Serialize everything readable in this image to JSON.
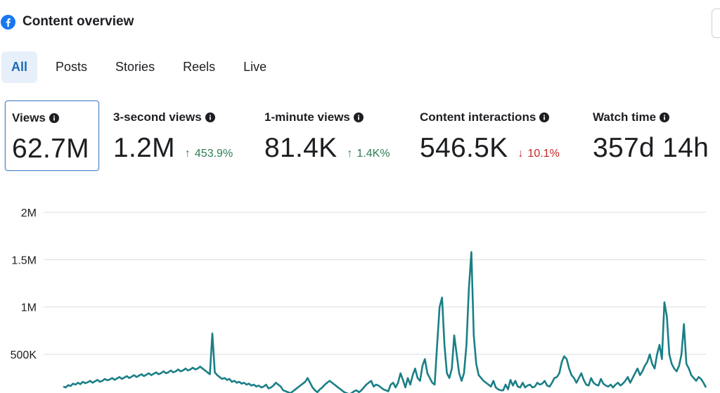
{
  "header": {
    "title": "Content overview",
    "logo_icon": "facebook-logo-icon",
    "brand_color": "#1877f2"
  },
  "tabs": [
    {
      "label": "All",
      "active": true
    },
    {
      "label": "Posts",
      "active": false
    },
    {
      "label": "Stories",
      "active": false
    },
    {
      "label": "Reels",
      "active": false
    },
    {
      "label": "Live",
      "active": false
    }
  ],
  "metrics": [
    {
      "label": "Views",
      "value": "62.7M",
      "delta": "",
      "delta_direction": "",
      "selected": true
    },
    {
      "label": "3-second views",
      "value": "1.2M",
      "delta": "453.9%",
      "delta_direction": "up",
      "selected": false
    },
    {
      "label": "1-minute views",
      "value": "81.4K",
      "delta": "1.4K%",
      "delta_direction": "up",
      "selected": false
    },
    {
      "label": "Content interactions",
      "value": "546.5K",
      "delta": "10.1%",
      "delta_direction": "down",
      "selected": false
    },
    {
      "label": "Watch time",
      "value": "357d 14h",
      "delta": "",
      "delta_direction": "",
      "selected": false
    }
  ],
  "colors": {
    "up": "#2e7d55",
    "down": "#c62828",
    "line": "#1a7f86",
    "tab_active_bg": "#e7f0fa",
    "tab_active_text": "#1d67b8"
  },
  "chart_data": {
    "type": "line",
    "title": "",
    "xlabel": "",
    "ylabel": "",
    "ylim": [
      0,
      2000000
    ],
    "yticks": [
      {
        "value": 2000000,
        "label": "2M"
      },
      {
        "value": 1500000,
        "label": "1.5M"
      },
      {
        "value": 1000000,
        "label": "1M"
      },
      {
        "value": 500000,
        "label": "500K"
      }
    ],
    "grid": true,
    "series": [
      {
        "values": [
          160000,
          150000,
          175000,
          165000,
          190000,
          180000,
          200000,
          185000,
          210000,
          195000,
          205000,
          220000,
          200000,
          215000,
          230000,
          210000,
          220000,
          240000,
          225000,
          235000,
          250000,
          230000,
          245000,
          260000,
          240000,
          255000,
          270000,
          250000,
          265000,
          280000,
          260000,
          275000,
          290000,
          270000,
          285000,
          300000,
          280000,
          295000,
          310000,
          290000,
          300000,
          320000,
          300000,
          310000,
          330000,
          310000,
          320000,
          340000,
          320000,
          330000,
          350000,
          330000,
          340000,
          360000,
          340000,
          350000,
          370000,
          350000,
          330000,
          310000,
          290000,
          720000,
          310000,
          280000,
          260000,
          240000,
          250000,
          230000,
          240000,
          210000,
          220000,
          200000,
          210000,
          190000,
          200000,
          180000,
          190000,
          170000,
          180000,
          160000,
          170000,
          150000,
          160000,
          180000,
          140000,
          150000,
          170000,
          200000,
          180000,
          160000,
          120000,
          110000,
          100000,
          90000,
          110000,
          130000,
          150000,
          170000,
          190000,
          210000,
          250000,
          200000,
          150000,
          120000,
          100000,
          130000,
          150000,
          180000,
          200000,
          220000,
          200000,
          180000,
          160000,
          140000,
          120000,
          100000,
          90000,
          80000,
          90000,
          110000,
          120000,
          100000,
          120000,
          150000,
          180000,
          200000,
          220000,
          160000,
          180000,
          170000,
          150000,
          130000,
          120000,
          110000,
          180000,
          200000,
          150000,
          200000,
          300000,
          230000,
          150000,
          250000,
          180000,
          280000,
          350000,
          250000,
          220000,
          380000,
          450000,
          300000,
          250000,
          200000,
          180000,
          600000,
          1000000,
          1100000,
          600000,
          300000,
          250000,
          350000,
          700000,
          500000,
          300000,
          220000,
          300000,
          600000,
          1200000,
          1580000,
          700000,
          400000,
          280000,
          250000,
          220000,
          200000,
          180000,
          160000,
          220000,
          150000,
          130000,
          120000,
          120000,
          180000,
          130000,
          230000,
          170000,
          220000,
          160000,
          150000,
          200000,
          150000,
          170000,
          180000,
          150000,
          160000,
          200000,
          180000,
          190000,
          220000,
          170000,
          160000,
          200000,
          250000,
          260000,
          300000,
          420000,
          480000,
          450000,
          350000,
          280000,
          250000,
          200000,
          250000,
          300000,
          230000,
          180000,
          170000,
          250000,
          200000,
          180000,
          170000,
          240000,
          190000,
          170000,
          160000,
          180000,
          150000,
          180000,
          200000,
          170000,
          190000,
          220000,
          260000,
          200000,
          250000,
          300000,
          350000,
          280000,
          320000,
          380000,
          420000,
          500000,
          400000,
          350000,
          500000,
          600000,
          450000,
          1050000,
          900000,
          500000,
          400000,
          350000,
          320000,
          380000,
          500000,
          820000,
          400000,
          350000,
          280000,
          250000,
          220000,
          260000,
          240000,
          200000,
          150000
        ]
      }
    ]
  }
}
